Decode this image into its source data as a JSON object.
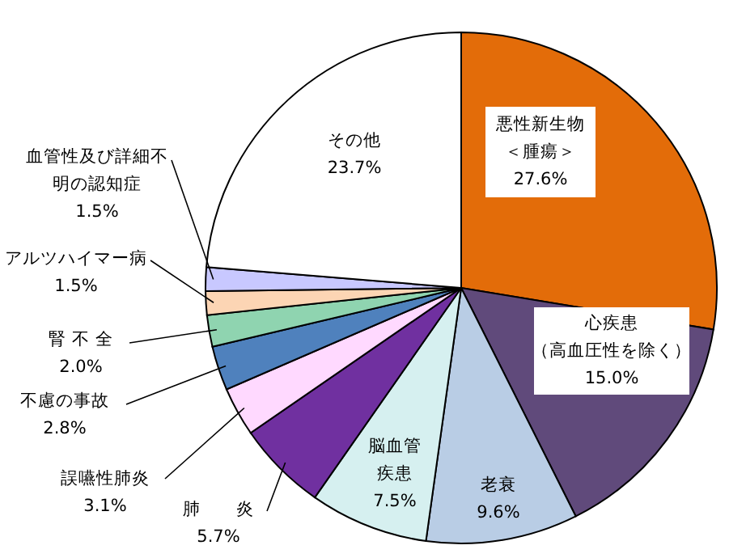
{
  "chart_data": {
    "type": "pie",
    "categories": [
      "悪性新生物＜腫瘍＞",
      "心疾患（高血圧性を除く）",
      "老衰",
      "脳血管疾患",
      "肺　　炎",
      "誤嚥性肺炎",
      "不慮の事故",
      "腎 不 全",
      "アルツハイマー病",
      "血管性及び詳細不明の認知症",
      "その他"
    ],
    "values": [
      27.6,
      15.0,
      9.6,
      7.5,
      5.7,
      3.1,
      2.8,
      2.0,
      1.5,
      1.5,
      23.7
    ],
    "value_labels": [
      "27.6%",
      "15.0%",
      "9.6%",
      "7.5%",
      "5.7%",
      "3.1%",
      "2.8%",
      "2.0%",
      "1.5%",
      "1.5%",
      "23.7%"
    ],
    "colors": [
      "#e36c09",
      "#604a7b",
      "#b9cde5",
      "#d6f0f0",
      "#7030a0",
      "#ffd9ff",
      "#4f81bd",
      "#8fd4b0",
      "#fcd5b4",
      "#c8c8ff",
      "#ffffff"
    ]
  }
}
